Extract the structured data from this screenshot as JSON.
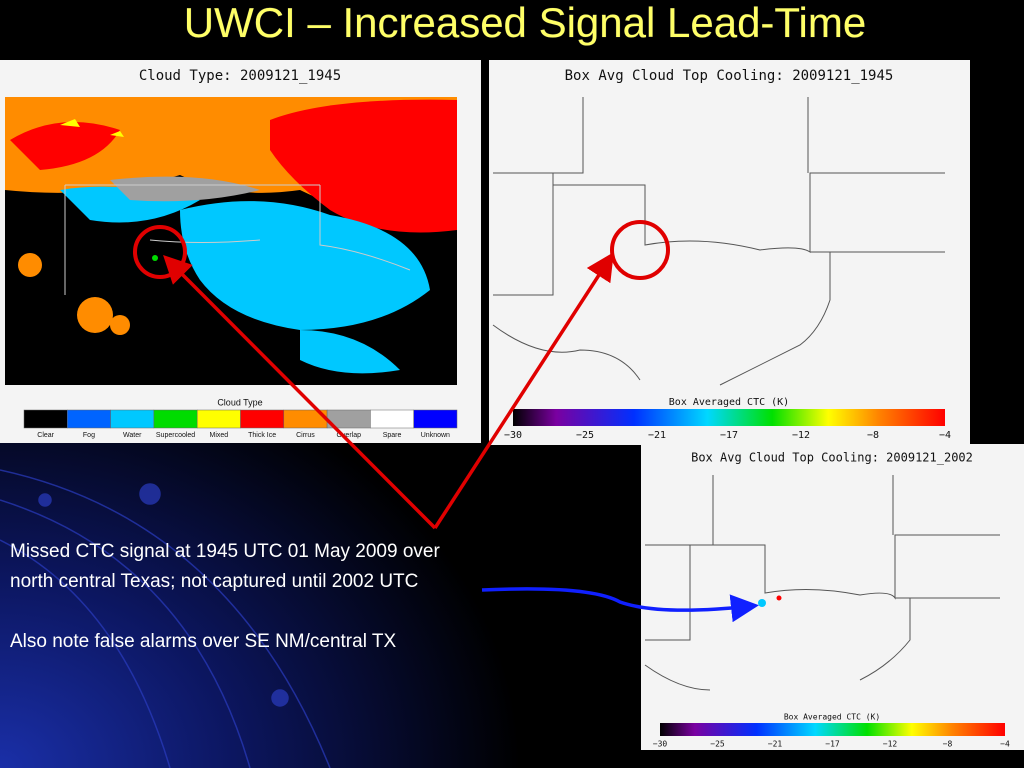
{
  "header": {
    "title": "UWCI – Increased Signal Lead-Time"
  },
  "panels": [
    {
      "title": "Cloud Type: 2009121_1945",
      "legend_title": "Cloud Type",
      "legend": [
        {
          "label": "Clear",
          "color": "#000000"
        },
        {
          "label": "Fog",
          "color": "#0064ff"
        },
        {
          "label": "Water",
          "color": "#00c8ff"
        },
        {
          "label": "Supercooled",
          "color": "#00dc00"
        },
        {
          "label": "Mixed",
          "color": "#ffff00"
        },
        {
          "label": "Thick Ice",
          "color": "#ff0000"
        },
        {
          "label": "Cirrus",
          "color": "#ff8c00"
        },
        {
          "label": "Overlap",
          "color": "#a0a0a0"
        },
        {
          "label": "Spare",
          "color": "#ffffff"
        },
        {
          "label": "Unknown",
          "color": "#0000ff"
        }
      ]
    },
    {
      "title": "Box Avg Cloud Top Cooling: 2009121_1945",
      "colorbar_title": "Box Averaged CTC (K)",
      "ticks": [
        "−30",
        "−25",
        "−21",
        "−17",
        "−12",
        "−8",
        "−4"
      ]
    },
    {
      "title": "Box Avg Cloud Top Cooling: 2009121_2002",
      "colorbar_title": "Box Averaged CTC (K)",
      "ticks": [
        "−30",
        "−25",
        "−21",
        "−17",
        "−12",
        "−8",
        "−4"
      ]
    }
  ],
  "text": {
    "paragraphs": [
      "Missed CTC signal at 1945 UTC 01 May 2009 over north central Texas; not captured until 2002 UTC",
      "Also note false alarms over SE NM/central TX"
    ]
  }
}
